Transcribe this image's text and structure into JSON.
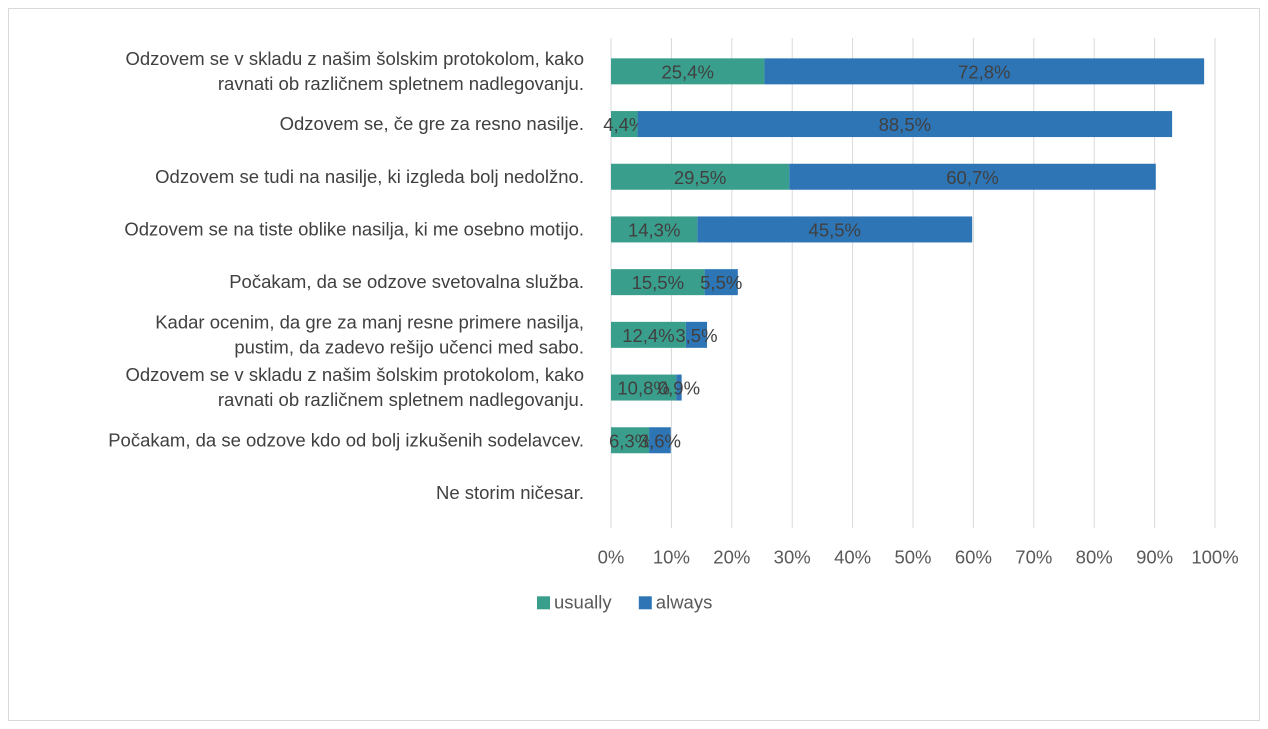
{
  "chart_data": {
    "type": "bar",
    "orientation": "horizontal",
    "stacked": true,
    "categories": [
      [
        "Odzovem se v skladu z našim šolskim protokolom, kako",
        "ravnati ob različnem spletnem nadlegovanju."
      ],
      [
        "Odzovem se, če gre za resno nasilje."
      ],
      [
        "Odzovem se tudi na nasilje, ki izgleda bolj nedolžno."
      ],
      [
        "Odzovem se na tiste oblike nasilja, ki me osebno motijo."
      ],
      [
        "Počakam, da se odzove svetovalna služba."
      ],
      [
        "Kadar ocenim,  da gre za manj resne primere nasilja,",
        "pustim, da zadevo rešijo učenci med sabo."
      ],
      [
        "Odzovem se v skladu z našim šolskim protokolom, kako",
        "ravnati ob različnem spletnem nadlegovanju."
      ],
      [
        "Počakam, da se odzove kdo od bolj izkušenih sodelavcev."
      ],
      [
        "Ne storim ničesar."
      ]
    ],
    "series": [
      {
        "name": "usually",
        "color": "#3a9e8c",
        "values": [
          25.4,
          4.4,
          29.5,
          14.3,
          15.5,
          12.4,
          10.8,
          6.3,
          null
        ],
        "labels": [
          "25,4%",
          "4,4%",
          "29,5%",
          "14,3%",
          "15,5%",
          "12,4%",
          "10,8%",
          "6,3%",
          ""
        ]
      },
      {
        "name": "always",
        "color": "#2e75b6",
        "values": [
          72.8,
          88.5,
          60.7,
          45.5,
          5.5,
          3.5,
          0.9,
          3.6,
          null
        ],
        "labels": [
          "72,8%",
          "88,5%",
          "60,7%",
          "45,5%",
          "5,5%",
          "3,5%",
          "0,9%",
          "3,6%",
          ""
        ]
      }
    ],
    "x_ticks": [
      "0%",
      "10%",
      "20%",
      "30%",
      "40%",
      "50%",
      "60%",
      "70%",
      "80%",
      "90%",
      "100%"
    ],
    "xlim": [
      0,
      100
    ],
    "grid": true,
    "legend_position": "bottom"
  }
}
